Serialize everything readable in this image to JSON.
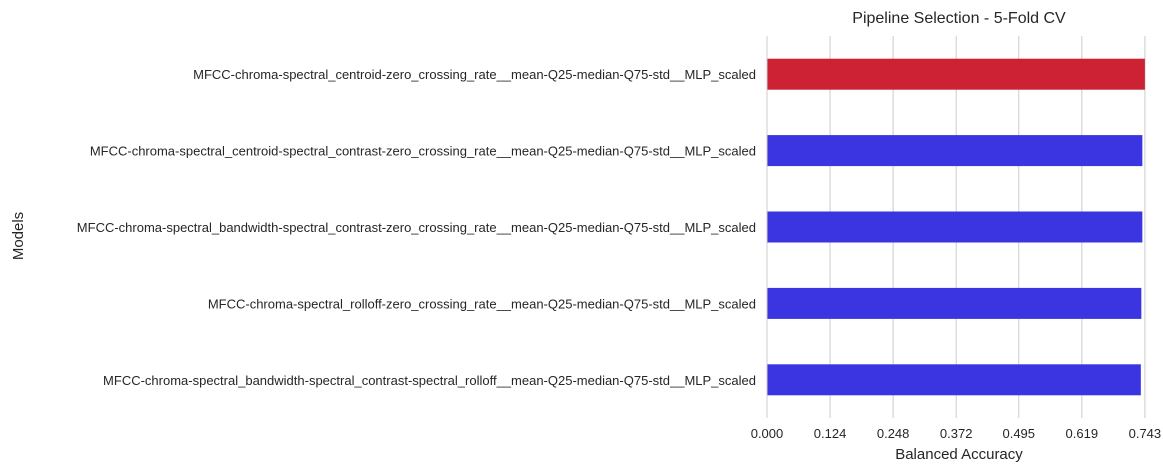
{
  "chart_data": {
    "type": "bar",
    "orientation": "horizontal",
    "title": "Pipeline Selection - 5-Fold CV",
    "xlabel": "Balanced Accuracy",
    "ylabel": "Models",
    "xlim": [
      0,
      0.755
    ],
    "xticks": [
      0.0,
      0.124,
      0.248,
      0.372,
      0.495,
      0.619,
      0.743
    ],
    "xtick_labels": [
      "0.000",
      "0.124",
      "0.248",
      "0.372",
      "0.495",
      "0.619",
      "0.743"
    ],
    "grid": "vertical",
    "categories": [
      "MFCC-chroma-spectral_centroid-zero_crossing_rate__mean-Q25-median-Q75-std__MLP_scaled",
      "MFCC-chroma-spectral_centroid-spectral_contrast-zero_crossing_rate__mean-Q25-median-Q75-std__MLP_scaled",
      "MFCC-chroma-spectral_bandwidth-spectral_contrast-zero_crossing_rate__mean-Q25-median-Q75-std__MLP_scaled",
      "MFCC-chroma-spectral_rolloff-zero_crossing_rate__mean-Q25-median-Q75-std__MLP_scaled",
      "MFCC-chroma-spectral_bandwidth-spectral_contrast-spectral_rolloff__mean-Q25-median-Q75-std__MLP_scaled"
    ],
    "values": [
      0.743,
      0.738,
      0.738,
      0.736,
      0.735
    ],
    "bar_colors": [
      "#cc2233",
      "#3a35e0",
      "#3a35e0",
      "#3a35e0",
      "#3a35e0"
    ]
  }
}
